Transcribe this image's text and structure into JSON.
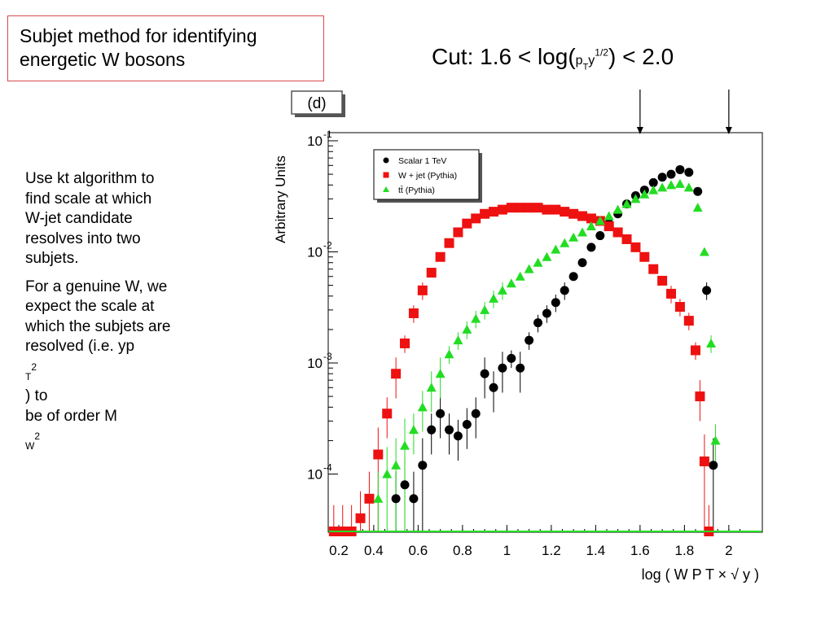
{
  "slide": {
    "title_lines": [
      "Subjet method for identifying",
      "energetic W bosons"
    ],
    "cut": {
      "prefix": "Cut: 1.6 < log(",
      "p": "p",
      "t": "T",
      "y": "y",
      "exp": "1/2",
      "suffix": ") < 2.0"
    },
    "para1_lines": [
      "Use kt algorithm to",
      "find scale at which",
      "W-jet candidate",
      "resolves into two",
      "subjets."
    ],
    "para2": {
      "l1": "For a genuine W, we",
      "l2": "expect the scale at",
      "l3": "which the subjets are",
      "l4_a": "resolved (i.e. yp",
      "l4_sub": "T",
      "l4_sup": "2",
      "l4_b": ") to",
      "l5_a": "be of order M",
      "l5_sub": "W",
      "l5_sup": "2"
    }
  },
  "chart_data": {
    "type": "scatter",
    "panel_label": "(d)",
    "ylabel": "Arbitrary Units",
    "xlabel": "log ( W P T × √ y )",
    "xlim": [
      0.2,
      2.1
    ],
    "ylim_log10": [
      -4.5,
      -0.95
    ],
    "yscale": "log",
    "x_ticks": [
      "0.2",
      "0.4",
      "0.6",
      "0.8",
      "1",
      "1.2",
      "1.4",
      "1.6",
      "1.8",
      "2"
    ],
    "y_tick_exponents": [
      "-1",
      "-2",
      "-3",
      "-4"
    ],
    "y_tick_base": "10",
    "legend_position": "top-left",
    "cut_arrows_x": [
      1.6,
      2.0
    ],
    "series": [
      {
        "name": "Scalar 1 TeV",
        "color": "#000000",
        "marker": "circle",
        "x": [
          0.5,
          0.54,
          0.58,
          0.62,
          0.66,
          0.7,
          0.74,
          0.78,
          0.82,
          0.86,
          0.9,
          0.94,
          0.98,
          1.02,
          1.06,
          1.1,
          1.14,
          1.18,
          1.22,
          1.26,
          1.3,
          1.34,
          1.38,
          1.42,
          1.46,
          1.5,
          1.54,
          1.58,
          1.62,
          1.66,
          1.7,
          1.74,
          1.78,
          1.82,
          1.86,
          1.9,
          1.93
        ],
        "y": [
          6e-05,
          8e-05,
          6e-05,
          0.00012,
          0.00025,
          0.00035,
          0.00025,
          0.00022,
          0.00028,
          0.00035,
          0.0008,
          0.0006,
          0.0009,
          0.0011,
          0.0009,
          0.0016,
          0.0023,
          0.0028,
          0.0035,
          0.0045,
          0.006,
          0.008,
          0.011,
          0.014,
          0.018,
          0.022,
          0.027,
          0.032,
          0.036,
          0.042,
          0.047,
          0.05,
          0.055,
          0.052,
          0.035,
          0.0045,
          0.00012
        ]
      },
      {
        "name": "W + jet (Pythia)",
        "color": "#ee1111",
        "marker": "square",
        "x": [
          0.22,
          0.26,
          0.3,
          0.34,
          0.38,
          0.42,
          0.46,
          0.5,
          0.54,
          0.58,
          0.62,
          0.66,
          0.7,
          0.74,
          0.78,
          0.82,
          0.86,
          0.9,
          0.94,
          0.98,
          1.02,
          1.06,
          1.1,
          1.14,
          1.18,
          1.22,
          1.26,
          1.3,
          1.34,
          1.38,
          1.42,
          1.46,
          1.5,
          1.54,
          1.58,
          1.62,
          1.66,
          1.7,
          1.74,
          1.78,
          1.82,
          1.85,
          1.87,
          1.89,
          1.91
        ],
        "y": [
          3e-05,
          3e-05,
          3e-05,
          4e-05,
          6e-05,
          0.00015,
          0.00035,
          0.0008,
          0.0015,
          0.0028,
          0.0045,
          0.0065,
          0.009,
          0.012,
          0.015,
          0.018,
          0.02,
          0.022,
          0.023,
          0.024,
          0.025,
          0.025,
          0.025,
          0.025,
          0.024,
          0.024,
          0.023,
          0.022,
          0.021,
          0.02,
          0.019,
          0.017,
          0.015,
          0.013,
          0.011,
          0.009,
          0.007,
          0.0055,
          0.0042,
          0.0032,
          0.0024,
          0.0013,
          0.0005,
          0.00013,
          3e-05
        ]
      },
      {
        "name": "tt̄ (Pythia)",
        "color": "#22dd22",
        "marker": "triangle",
        "x": [
          0.42,
          0.46,
          0.5,
          0.54,
          0.58,
          0.62,
          0.66,
          0.7,
          0.74,
          0.78,
          0.82,
          0.86,
          0.9,
          0.94,
          0.98,
          1.02,
          1.06,
          1.1,
          1.14,
          1.18,
          1.22,
          1.26,
          1.3,
          1.34,
          1.38,
          1.42,
          1.46,
          1.5,
          1.54,
          1.58,
          1.62,
          1.66,
          1.7,
          1.74,
          1.78,
          1.82,
          1.86,
          1.89,
          1.92,
          1.94
        ],
        "y": [
          6e-05,
          0.0001,
          0.00012,
          0.00018,
          0.00025,
          0.0004,
          0.0006,
          0.0008,
          0.0012,
          0.0016,
          0.002,
          0.0025,
          0.003,
          0.0038,
          0.0045,
          0.0052,
          0.006,
          0.007,
          0.008,
          0.009,
          0.0105,
          0.012,
          0.0135,
          0.015,
          0.017,
          0.019,
          0.021,
          0.024,
          0.027,
          0.03,
          0.033,
          0.036,
          0.038,
          0.04,
          0.041,
          0.038,
          0.025,
          0.01,
          0.0015,
          0.0002
        ]
      }
    ]
  }
}
